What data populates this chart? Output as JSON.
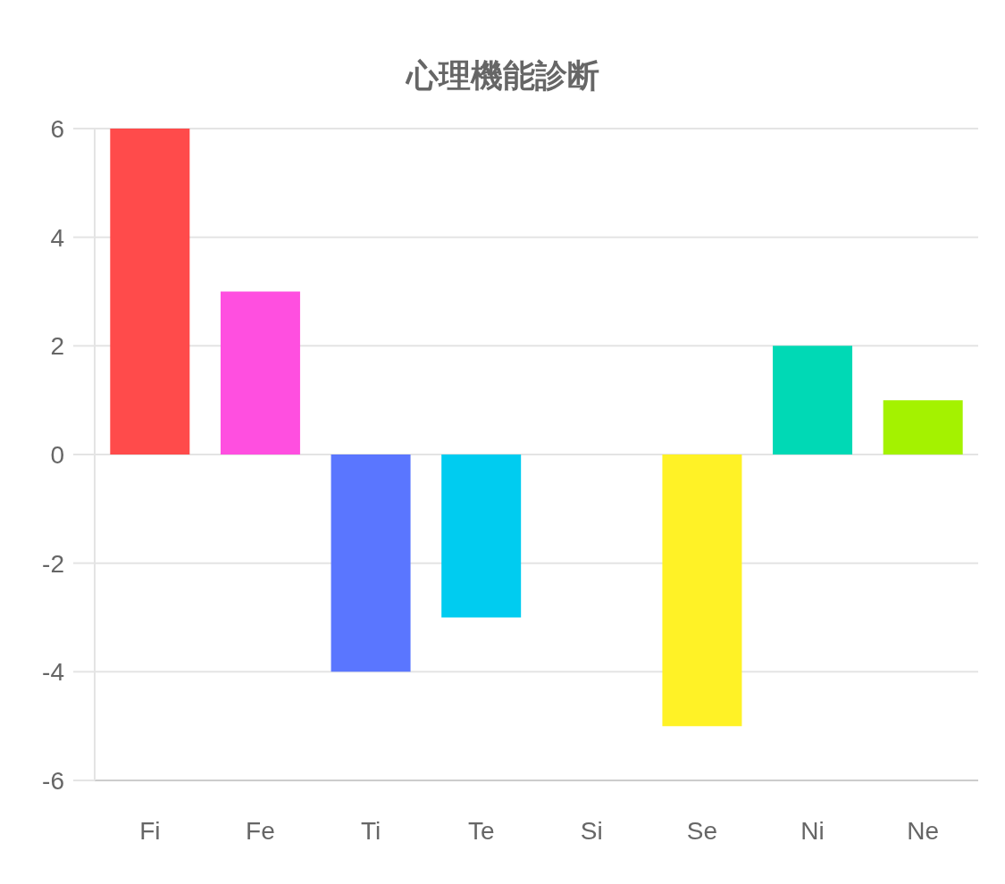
{
  "chart_data": {
    "type": "bar",
    "title": "心理機能診断",
    "categories": [
      "Fi",
      "Fe",
      "Ti",
      "Te",
      "Si",
      "Se",
      "Ni",
      "Ne"
    ],
    "values": [
      6,
      3,
      -4,
      -3,
      0,
      -5,
      2,
      1
    ],
    "colors": [
      "#ff4b4b",
      "#ff4fe0",
      "#5a76ff",
      "#00ccf0",
      null,
      "#fff226",
      "#00d9b5",
      "#a4f200"
    ],
    "ylim": [
      -6,
      6
    ],
    "yticks": [
      -6,
      -4,
      -2,
      0,
      2,
      4,
      6
    ],
    "grid": "y"
  }
}
